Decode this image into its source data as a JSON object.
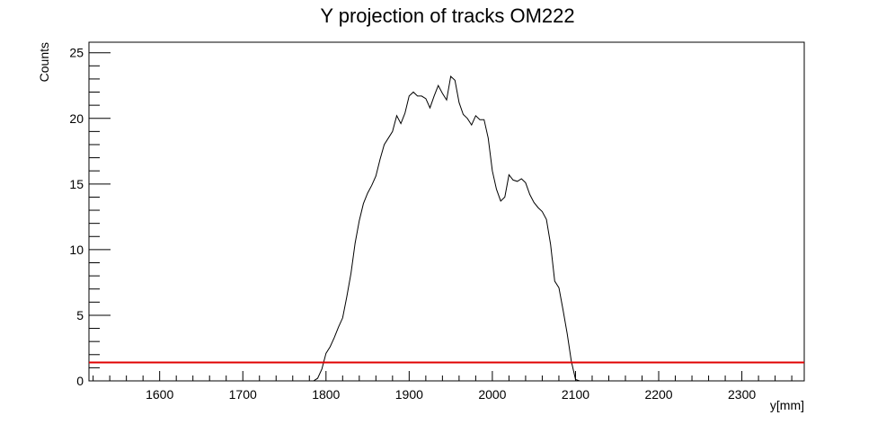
{
  "chart_data": {
    "type": "line",
    "title": "Y projection of tracks OM222",
    "xlabel": "y[mm]",
    "ylabel": "Counts",
    "xlim": [
      1515,
      2375
    ],
    "ylim": [
      0,
      25.8
    ],
    "x_ticks": [
      1600,
      1700,
      1800,
      1900,
      2000,
      2100,
      2200,
      2300
    ],
    "y_ticks": [
      0,
      5,
      10,
      15,
      20,
      25
    ],
    "grid": false,
    "legend": "none",
    "series": [
      {
        "color": "#000000",
        "x": [
          1515,
          1785,
          1790,
          1795,
          1800,
          1805,
          1810,
          1815,
          1820,
          1825,
          1830,
          1835,
          1840,
          1845,
          1850,
          1855,
          1860,
          1865,
          1870,
          1875,
          1880,
          1885,
          1890,
          1895,
          1900,
          1905,
          1910,
          1915,
          1920,
          1925,
          1930,
          1935,
          1940,
          1945,
          1950,
          1955,
          1960,
          1965,
          1970,
          1975,
          1980,
          1985,
          1990,
          1995,
          2000,
          2005,
          2010,
          2015,
          2020,
          2025,
          2030,
          2035,
          2040,
          2045,
          2050,
          2055,
          2060,
          2065,
          2070,
          2075,
          2080,
          2085,
          2090,
          2095,
          2100,
          2105,
          2110,
          2115,
          2120,
          2125,
          2130,
          2135,
          2140,
          2375
        ],
        "y": [
          0,
          0,
          0.2,
          0.9,
          2.1,
          2.6,
          3.3,
          4.1,
          4.8,
          6.4,
          8.2,
          10.5,
          12.2,
          13.5,
          14.3,
          14.9,
          15.6,
          16.9,
          18.0,
          18.5,
          19.0,
          20.2,
          19.6,
          20.4,
          21.7,
          22.0,
          21.7,
          21.7,
          21.5,
          20.8,
          21.7,
          22.5,
          21.9,
          21.4,
          23.2,
          22.9,
          21.2,
          20.3,
          20.0,
          19.5,
          20.2,
          19.9,
          19.9,
          18.5,
          16.0,
          14.6,
          13.7,
          14.0,
          15.7,
          15.3,
          15.2,
          15.4,
          15.1,
          14.2,
          13.6,
          13.2,
          12.9,
          12.3,
          10.4,
          7.6,
          7.1,
          5.4,
          3.6,
          1.5,
          0.1,
          0,
          0,
          0,
          0,
          0,
          0,
          0,
          0,
          0
        ]
      },
      {
        "color": "#e00000",
        "x": [
          1515,
          2375
        ],
        "y": [
          1.4,
          1.4
        ]
      }
    ]
  }
}
